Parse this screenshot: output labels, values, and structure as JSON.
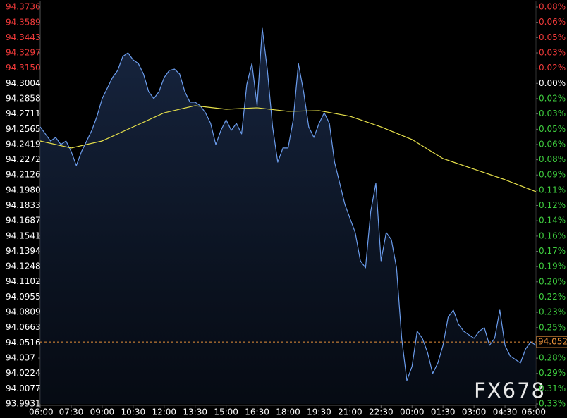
{
  "chart_data": {
    "type": "line",
    "watermark": "FX678",
    "ylim": [
      93.9931,
      94.3736
    ],
    "yticks": [
      94.3736,
      94.3589,
      94.3443,
      94.3297,
      {
        "value": 94.315,
        "label": "94.3150"
      },
      94.3004,
      94.2858,
      94.2711,
      94.2565,
      94.2419,
      94.2272,
      94.2126,
      {
        "value": 94.198,
        "label": "94.1980"
      },
      94.1833,
      94.1687,
      94.1541,
      94.1394,
      94.1248,
      94.1102,
      94.0955,
      94.0809,
      94.0663,
      94.0516,
      94.037,
      94.0224,
      94.0077,
      93.9931
    ],
    "y2lim": [
      -0.3258,
      0.0776
    ],
    "y2ticks": [
      {
        "value": 0.0776,
        "label": "0.08%"
      },
      {
        "value": 0.0621,
        "label": "0.06%"
      },
      {
        "value": 0.0466,
        "label": "0.05%"
      },
      {
        "value": 0.031,
        "label": "0.03%"
      },
      {
        "value": 0.0155,
        "label": "0.02%"
      },
      {
        "value": 0,
        "label": "0.00%"
      },
      {
        "value": -0.0155,
        "label": "0.02%"
      },
      {
        "value": -0.031,
        "label": "0.03%"
      },
      {
        "value": -0.0466,
        "label": "0.05%"
      },
      {
        "value": -0.0621,
        "label": "0.06%"
      },
      {
        "value": -0.0776,
        "label": "0.08%"
      },
      {
        "value": -0.0931,
        "label": "0.09%"
      },
      {
        "value": -0.1086,
        "label": "0.11%"
      },
      {
        "value": -0.1241,
        "label": "0.12%"
      },
      {
        "value": -0.1396,
        "label": "0.14%"
      },
      {
        "value": -0.1552,
        "label": "0.16%"
      },
      {
        "value": -0.1707,
        "label": "0.17%"
      },
      {
        "value": -0.1862,
        "label": "0.19%"
      },
      {
        "value": -0.2017,
        "label": "0.20%"
      },
      {
        "value": -0.2172,
        "label": "0.22%"
      },
      {
        "value": -0.2327,
        "label": "0.23%"
      },
      {
        "value": -0.2483,
        "label": "0.25%"
      },
      {
        "value": -0.2638,
        "label": "0.26%"
      },
      {
        "value": -0.2793,
        "label": "0.28%"
      },
      {
        "value": -0.2948,
        "label": "0.29%"
      },
      {
        "value": -0.3103,
        "label": "0.31%"
      },
      {
        "value": -0.3258,
        "label": "0.33%"
      }
    ],
    "up_color": "#f23a3a",
    "down_color": "#3fcf3f",
    "flat_color": "#ffffff",
    "xticks": [
      "06:00",
      "07:30",
      "09:00",
      "10:30",
      "12:00",
      "13:30",
      "15:00",
      "16:30",
      "18:00",
      "19:30",
      "21:00",
      "22:30",
      "00:00",
      "01:30",
      "03:00",
      "04:30",
      "06:00"
    ],
    "last_price": 94.0525,
    "last_color": "#e8913a",
    "series": [
      {
        "color": "#6b9cec",
        "fill": true,
        "x": [
          "06:00",
          "06:15",
          "06:30",
          "06:45",
          "07:00",
          "07:15",
          "07:30",
          "07:45",
          "08:00",
          "08:15",
          "08:30",
          "08:45",
          "09:00",
          "09:15",
          "09:30",
          "09:45",
          "10:00",
          "10:15",
          "10:30",
          "10:45",
          "11:00",
          "11:15",
          "11:30",
          "11:45",
          "12:00",
          "12:15",
          "12:30",
          "12:45",
          "13:00",
          "13:15",
          "13:30",
          "13:45",
          "14:00",
          "14:15",
          "14:30",
          "14:45",
          "15:00",
          "15:15",
          "15:30",
          "15:45",
          "16:00",
          "16:15",
          "16:30",
          "16:45",
          "17:00",
          "17:15",
          "17:30",
          "17:45",
          "18:00",
          "18:15",
          "18:30",
          "18:45",
          "19:00",
          "19:15",
          "19:30",
          "19:45",
          "20:00",
          "20:15",
          "20:30",
          "20:45",
          "21:00",
          "21:15",
          "21:30",
          "21:45",
          "22:00",
          "22:15",
          "22:30",
          "22:45",
          "23:00",
          "23:15",
          "23:30",
          "23:45",
          "00:00",
          "00:15",
          "00:30",
          "00:45",
          "01:00",
          "01:15",
          "01:30",
          "01:45",
          "02:00",
          "02:15",
          "02:30",
          "02:45",
          "03:00",
          "03:15",
          "03:30",
          "03:45",
          "04:00",
          "04:15",
          "04:30",
          "04:45",
          "05:00",
          "05:15",
          "05:30",
          "05:45",
          "06:00"
        ],
        "values": [
          94.2587,
          94.252,
          94.2452,
          94.2486,
          94.2418,
          94.2452,
          94.2351,
          94.2216,
          94.2351,
          94.2452,
          94.2554,
          94.2689,
          94.2858,
          94.2959,
          94.306,
          94.3128,
          94.3263,
          94.3297,
          94.3229,
          94.3195,
          94.3094,
          94.2925,
          94.2858,
          94.2925,
          94.306,
          94.3128,
          94.3141,
          94.3094,
          94.2925,
          94.2824,
          94.2824,
          94.279,
          94.2722,
          94.2621,
          94.2418,
          94.2554,
          94.2655,
          94.2554,
          94.2621,
          94.252,
          94.2993,
          94.3195,
          94.279,
          94.3533,
          94.3128,
          94.2587,
          94.2249,
          94.2385,
          94.2385,
          94.2655,
          94.3195,
          94.2925,
          94.2587,
          94.2486,
          94.2621,
          94.2722,
          94.2621,
          94.2249,
          94.2047,
          94.1844,
          94.1709,
          94.1574,
          94.1303,
          94.1236,
          94.1776,
          94.2047,
          94.1303,
          94.1574,
          94.1506,
          94.1236,
          94.056,
          94.0155,
          94.029,
          94.0628,
          94.056,
          94.0425,
          94.0222,
          94.0324,
          94.0493,
          94.0763,
          94.083,
          94.0695,
          94.0628,
          94.0594,
          94.056,
          94.0628,
          94.0662,
          94.0493,
          94.056,
          94.083,
          94.0493,
          94.0391,
          94.0357,
          94.0324,
          94.0459,
          94.0526,
          94.0493
        ]
      },
      {
        "color": "#e6e04a",
        "fill": false,
        "x": [
          "06:00",
          "07:30",
          "09:00",
          "10:30",
          "12:00",
          "13:30",
          "15:00",
          "16:30",
          "18:00",
          "19:30",
          "21:00",
          "22:30",
          "00:00",
          "01:30",
          "03:00",
          "04:30",
          "06:00"
        ],
        "values": [
          94.2452,
          94.2385,
          94.2452,
          94.2587,
          94.2722,
          94.279,
          94.2756,
          94.277,
          94.2736,
          94.2743,
          94.2689,
          94.2587,
          94.2466,
          94.2283,
          94.2182,
          94.2081,
          94.1966
        ]
      }
    ]
  }
}
